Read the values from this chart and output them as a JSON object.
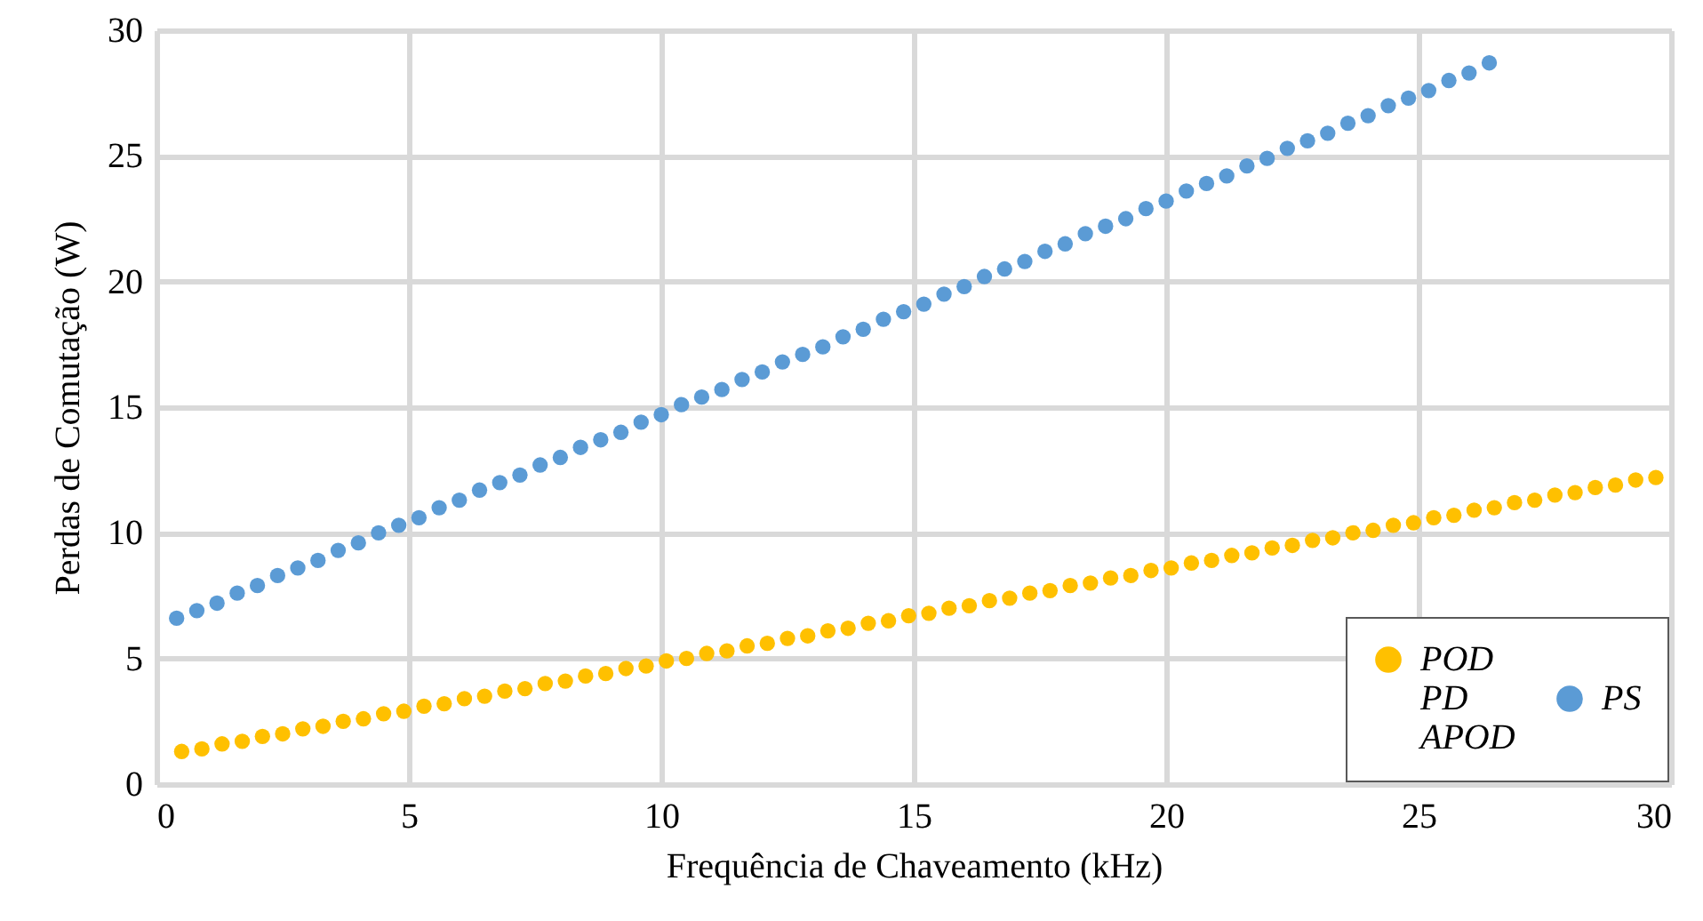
{
  "chart_data": {
    "type": "scatter",
    "xlabel": "Frequência de Chaveamento (kHz)",
    "ylabel": "Perdas de Comutação (W)",
    "xlim": [
      0,
      30
    ],
    "xticks": [
      0,
      5,
      10,
      15,
      20,
      25,
      30
    ],
    "ylim": [
      0,
      30
    ],
    "yticks": [
      0,
      5,
      10,
      15,
      20,
      25,
      30
    ],
    "grid": true,
    "legend": "bottom right",
    "marker": "circle",
    "series": [
      {
        "name": "POD PD APOD",
        "color": "#ffc000",
        "x": [
          0.5,
          0.9,
          1.3,
          1.7,
          2.1,
          2.5,
          2.9,
          3.3,
          3.7,
          4.1,
          4.5,
          4.9,
          5.3,
          5.7,
          6.1,
          6.5,
          6.9,
          7.3,
          7.7,
          8.1,
          8.5,
          8.9,
          9.3,
          9.7,
          10.1,
          10.5,
          10.9,
          11.3,
          11.7,
          12.1,
          12.5,
          12.9,
          13.3,
          13.7,
          14.1,
          14.5,
          14.9,
          15.3,
          15.7,
          16.1,
          16.5,
          16.9,
          17.3,
          17.7,
          18.1,
          18.5,
          18.9,
          19.3,
          19.7,
          20.1,
          20.5,
          20.9,
          21.3,
          21.7,
          22.1,
          22.5,
          22.9,
          23.3,
          23.7,
          24.1,
          24.5,
          24.9,
          25.3,
          25.7,
          26.1,
          26.5,
          26.9,
          27.3,
          27.7,
          28.1,
          28.5,
          28.9,
          29.3,
          29.7
        ],
        "values": [
          1.3,
          1.4,
          1.6,
          1.7,
          1.9,
          2.0,
          2.2,
          2.3,
          2.5,
          2.6,
          2.8,
          2.9,
          3.1,
          3.2,
          3.4,
          3.5,
          3.7,
          3.8,
          4.0,
          4.1,
          4.3,
          4.4,
          4.6,
          4.7,
          4.9,
          5.0,
          5.2,
          5.3,
          5.5,
          5.6,
          5.8,
          5.9,
          6.1,
          6.2,
          6.4,
          6.5,
          6.7,
          6.8,
          7.0,
          7.1,
          7.3,
          7.4,
          7.6,
          7.7,
          7.9,
          8.0,
          8.2,
          8.3,
          8.5,
          8.6,
          8.8,
          8.9,
          9.1,
          9.2,
          9.4,
          9.5,
          9.7,
          9.8,
          10.0,
          10.1,
          10.3,
          10.4,
          10.6,
          10.7,
          10.9,
          11.0,
          11.2,
          11.3,
          11.5,
          11.6,
          11.8,
          11.9,
          12.1,
          12.2
        ]
      },
      {
        "name": "PS",
        "color": "#5b9bd5",
        "x": [
          0.4,
          0.8,
          1.2,
          1.6,
          2.0,
          2.4,
          2.8,
          3.2,
          3.6,
          4.0,
          4.4,
          4.8,
          5.2,
          5.6,
          6.0,
          6.4,
          6.8,
          7.2,
          7.6,
          8.0,
          8.4,
          8.8,
          9.2,
          9.6,
          10.0,
          10.4,
          10.8,
          11.2,
          11.6,
          12.0,
          12.4,
          12.8,
          13.2,
          13.6,
          14.0,
          14.4,
          14.8,
          15.2,
          15.6,
          16.0,
          16.4,
          16.8,
          17.2,
          17.6,
          18.0,
          18.4,
          18.8,
          19.2,
          19.6,
          20.0,
          20.4,
          20.8,
          21.2,
          21.6,
          22.0,
          22.4,
          22.8,
          23.2,
          23.6,
          24.0,
          24.4,
          24.8,
          25.2,
          25.6,
          26.0,
          26.4
        ],
        "values": [
          6.6,
          6.9,
          7.2,
          7.6,
          7.9,
          8.3,
          8.6,
          8.9,
          9.3,
          9.6,
          10.0,
          10.3,
          10.6,
          11.0,
          11.3,
          11.7,
          12.0,
          12.3,
          12.7,
          13.0,
          13.4,
          13.7,
          14.0,
          14.4,
          14.7,
          15.1,
          15.4,
          15.7,
          16.1,
          16.4,
          16.8,
          17.1,
          17.4,
          17.8,
          18.1,
          18.5,
          18.8,
          19.1,
          19.5,
          19.8,
          20.2,
          20.5,
          20.8,
          21.2,
          21.5,
          21.9,
          22.2,
          22.5,
          22.9,
          23.2,
          23.6,
          23.9,
          24.2,
          24.6,
          24.9,
          25.3,
          25.6,
          25.9,
          26.3,
          26.6,
          27.0,
          27.3,
          27.6,
          28.0,
          28.3,
          28.7
        ]
      }
    ]
  }
}
